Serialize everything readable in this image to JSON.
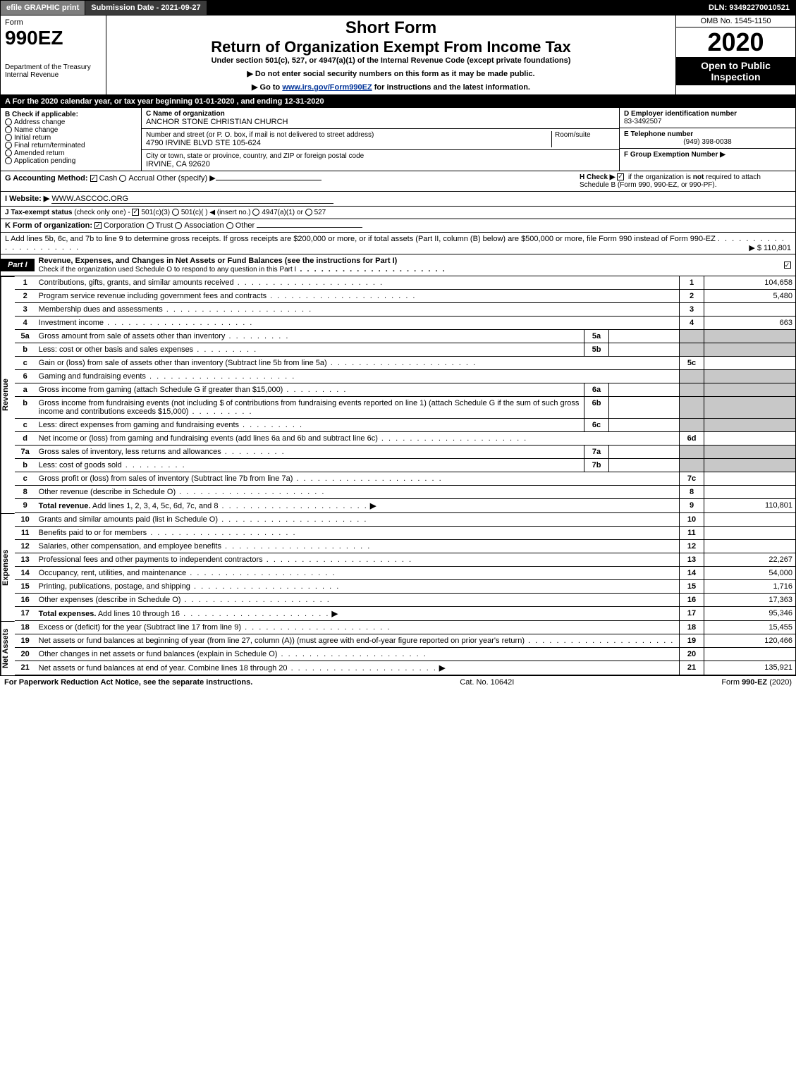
{
  "topbar": {
    "efile": "efile GRAPHIC print",
    "submission": "Submission Date - 2021-09-27",
    "dln": "DLN: 93492270010521"
  },
  "header": {
    "form_label": "Form",
    "form_number": "990EZ",
    "dept": "Department of the Treasury",
    "irs": "Internal Revenue",
    "short_form": "Short Form",
    "return_title": "Return of Organization Exempt From Income Tax",
    "subtitle": "Under section 501(c), 527, or 4947(a)(1) of the Internal Revenue Code (except private foundations)",
    "notice1_prefix": "▶ Do not enter social security numbers on this form as it may be made public.",
    "notice2_prefix": "▶ Go to ",
    "notice2_link": "www.irs.gov/Form990EZ",
    "notice2_suffix": " for instructions and the latest information.",
    "omb": "OMB No. 1545-1150",
    "year": "2020",
    "open_public": "Open to Public Inspection"
  },
  "row_a": "A For the 2020 calendar year, or tax year beginning 01-01-2020 , and ending 12-31-2020",
  "col_b": {
    "title": "B Check if applicable:",
    "items": [
      "Address change",
      "Name change",
      "Initial return",
      "Final return/terminated",
      "Amended return",
      "Application pending"
    ]
  },
  "col_c": {
    "name_label": "C Name of organization",
    "name": "ANCHOR STONE CHRISTIAN CHURCH",
    "addr_label": "Number and street (or P. O. box, if mail is not delivered to street address)",
    "room_label": "Room/suite",
    "addr": "4790 IRVINE BLVD STE 105-624",
    "city_label": "City or town, state or province, country, and ZIP or foreign postal code",
    "city": "IRVINE, CA  92620"
  },
  "col_d": {
    "ein_label": "D Employer identification number",
    "ein": "83-3492507",
    "phone_label": "E Telephone number",
    "phone": "(949) 398-0038",
    "group_label": "F Group Exemption Number ▶"
  },
  "row_g": {
    "label": "G Accounting Method:",
    "cash": "Cash",
    "accrual": "Accrual",
    "other": "Other (specify) ▶"
  },
  "row_h": {
    "label": "H Check ▶",
    "text1": "if the organization is ",
    "not": "not",
    "text2": " required to attach Schedule B (Form 990, 990-EZ, or 990-PF)."
  },
  "row_i": {
    "label": "I Website: ▶",
    "value": "WWW.ASCCOC.ORG"
  },
  "row_j": {
    "label": "J Tax-exempt status",
    "note": "(check only one) -",
    "opt1": "501(c)(3)",
    "opt2": "501(c)(  ) ◀ (insert no.)",
    "opt3": "4947(a)(1) or",
    "opt4": "527"
  },
  "row_k": {
    "label": "K Form of organization:",
    "opts": [
      "Corporation",
      "Trust",
      "Association",
      "Other"
    ]
  },
  "row_l": {
    "text": "L Add lines 5b, 6c, and 7b to line 9 to determine gross receipts. If gross receipts are $200,000 or more, or if total assets (Part II, column (B) below) are $500,000 or more, file Form 990 instead of Form 990-EZ",
    "amount": "▶ $ 110,801"
  },
  "part1": {
    "tab": "Part I",
    "title": "Revenue, Expenses, and Changes in Net Assets or Fund Balances (see the instructions for Part I)",
    "check_note": "Check if the organization used Schedule O to respond to any question in this Part I"
  },
  "sections": {
    "revenue": "Revenue",
    "expenses": "Expenses",
    "netassets": "Net Assets"
  },
  "lines": [
    {
      "n": "1",
      "d": "Contributions, gifts, grants, and similar amounts received",
      "r": "1",
      "a": "104,658"
    },
    {
      "n": "2",
      "d": "Program service revenue including government fees and contracts",
      "r": "2",
      "a": "5,480"
    },
    {
      "n": "3",
      "d": "Membership dues and assessments",
      "r": "3",
      "a": ""
    },
    {
      "n": "4",
      "d": "Investment income",
      "r": "4",
      "a": "663"
    },
    {
      "n": "5a",
      "d": "Gross amount from sale of assets other than inventory",
      "sub": "5a"
    },
    {
      "n": "b",
      "d": "Less: cost or other basis and sales expenses",
      "sub": "5b"
    },
    {
      "n": "c",
      "d": "Gain or (loss) from sale of assets other than inventory (Subtract line 5b from line 5a)",
      "r": "5c",
      "a": ""
    },
    {
      "n": "6",
      "d": "Gaming and fundraising events",
      "nobox": true
    },
    {
      "n": "a",
      "d": "Gross income from gaming (attach Schedule G if greater than $15,000)",
      "sub": "6a"
    },
    {
      "n": "b",
      "d": "Gross income from fundraising events (not including $                    of contributions from fundraising events reported on line 1) (attach Schedule G if the sum of such gross income and contributions exceeds $15,000)",
      "sub": "6b"
    },
    {
      "n": "c",
      "d": "Less: direct expenses from gaming and fundraising events",
      "sub": "6c"
    },
    {
      "n": "d",
      "d": "Net income or (loss) from gaming and fundraising events (add lines 6a and 6b and subtract line 6c)",
      "r": "6d",
      "a": ""
    },
    {
      "n": "7a",
      "d": "Gross sales of inventory, less returns and allowances",
      "sub": "7a"
    },
    {
      "n": "b",
      "d": "Less: cost of goods sold",
      "sub": "7b"
    },
    {
      "n": "c",
      "d": "Gross profit or (loss) from sales of inventory (Subtract line 7b from line 7a)",
      "r": "7c",
      "a": ""
    },
    {
      "n": "8",
      "d": "Other revenue (describe in Schedule O)",
      "r": "8",
      "a": ""
    },
    {
      "n": "9",
      "d": "Total revenue. Add lines 1, 2, 3, 4, 5c, 6d, 7c, and 8",
      "r": "9",
      "a": "110,801",
      "bold": true,
      "arrow": true
    }
  ],
  "exp_lines": [
    {
      "n": "10",
      "d": "Grants and similar amounts paid (list in Schedule O)",
      "r": "10",
      "a": ""
    },
    {
      "n": "11",
      "d": "Benefits paid to or for members",
      "r": "11",
      "a": ""
    },
    {
      "n": "12",
      "d": "Salaries, other compensation, and employee benefits",
      "r": "12",
      "a": ""
    },
    {
      "n": "13",
      "d": "Professional fees and other payments to independent contractors",
      "r": "13",
      "a": "22,267"
    },
    {
      "n": "14",
      "d": "Occupancy, rent, utilities, and maintenance",
      "r": "14",
      "a": "54,000"
    },
    {
      "n": "15",
      "d": "Printing, publications, postage, and shipping",
      "r": "15",
      "a": "1,716"
    },
    {
      "n": "16",
      "d": "Other expenses (describe in Schedule O)",
      "r": "16",
      "a": "17,363"
    },
    {
      "n": "17",
      "d": "Total expenses. Add lines 10 through 16",
      "r": "17",
      "a": "95,346",
      "bold": true,
      "arrow": true
    }
  ],
  "net_lines": [
    {
      "n": "18",
      "d": "Excess or (deficit) for the year (Subtract line 17 from line 9)",
      "r": "18",
      "a": "15,455"
    },
    {
      "n": "19",
      "d": "Net assets or fund balances at beginning of year (from line 27, column (A)) (must agree with end-of-year figure reported on prior year's return)",
      "r": "19",
      "a": "120,466"
    },
    {
      "n": "20",
      "d": "Other changes in net assets or fund balances (explain in Schedule O)",
      "r": "20",
      "a": ""
    },
    {
      "n": "21",
      "d": "Net assets or fund balances at end of year. Combine lines 18 through 20",
      "r": "21",
      "a": "135,921",
      "arrow": true
    }
  ],
  "footer": {
    "left": "For Paperwork Reduction Act Notice, see the separate instructions.",
    "mid": "Cat. No. 10642I",
    "right_prefix": "Form ",
    "right_form": "990-EZ",
    "right_suffix": " (2020)"
  }
}
